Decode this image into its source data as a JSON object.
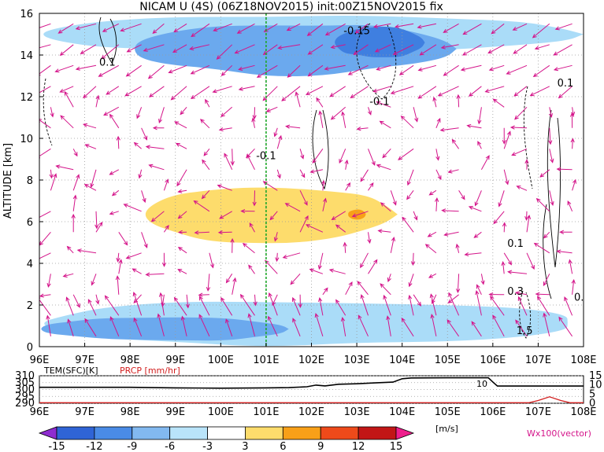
{
  "title": "NICAM U (4S) (06Z18NOV2015) init:00Z15NOV2015 fix",
  "chart_data": [
    {
      "type": "heatmap",
      "title": "NICAM U (4S) (06Z18NOV2015) init:00Z15NOV2015 fix",
      "ylabel": "ALTITUDE [km]",
      "xlim": [
        96,
        108
      ],
      "ylim": [
        0,
        16
      ],
      "x_ticks": [
        "96E",
        "97E",
        "98E",
        "99E",
        "100E",
        "101E",
        "102E",
        "103E",
        "104E",
        "105E",
        "106E",
        "107E",
        "108E"
      ],
      "y_ticks": [
        "0",
        "2",
        "4",
        "6",
        "8",
        "10",
        "12",
        "14",
        "16"
      ],
      "marker_longitude": 101,
      "grid": true,
      "contour_labels": [
        {
          "text": "-0.15",
          "x": 103.0,
          "y": 15.0
        },
        {
          "text": "0.1",
          "x": 97.5,
          "y": 13.5
        },
        {
          "text": "-0.1",
          "x": 103.5,
          "y": 11.6
        },
        {
          "text": "-0.1",
          "x": 101.0,
          "y": 9.0
        },
        {
          "text": "0.1",
          "x": 107.6,
          "y": 12.5
        },
        {
          "text": "0.1",
          "x": 106.5,
          "y": 4.8
        },
        {
          "text": "0.3",
          "x": 106.5,
          "y": 2.5
        },
        {
          "text": "0.",
          "x": 107.9,
          "y": 2.2
        },
        {
          "text": "1.5",
          "x": 106.7,
          "y": 0.6
        }
      ],
      "shaded_regions": [
        {
          "level": -6,
          "color": "#aadcf8",
          "x": [
            96.0,
            108.0
          ],
          "y": [
            14.0,
            16.0
          ]
        },
        {
          "level": -9,
          "color": "#6ba9ee",
          "x": [
            98.0,
            105.2
          ],
          "y": [
            13.0,
            15.6
          ]
        },
        {
          "level": -12,
          "color": "#3f7fe0",
          "x": [
            102.5,
            104.5
          ],
          "y": [
            13.8,
            15.4
          ]
        },
        {
          "level": 3,
          "color": "#fddc6c",
          "x": [
            98.3,
            103.9
          ],
          "y": [
            4.9,
            7.8
          ]
        },
        {
          "level": 6,
          "color": "#f8a018",
          "x": [
            102.8,
            103.2
          ],
          "y": [
            6.1,
            6.6
          ]
        },
        {
          "level": -6,
          "color": "#aadcf8",
          "x": [
            96.0,
            108.0
          ],
          "y": [
            0.0,
            2.3
          ]
        },
        {
          "level": -9,
          "color": "#6ba9ee",
          "x": [
            96.0,
            101.5
          ],
          "y": [
            0.2,
            1.5
          ]
        }
      ]
    },
    {
      "type": "line",
      "legend": [
        "TEM(SFC)[K]",
        "PRCP [mm/hr]"
      ],
      "x_ticks": [
        "96E",
        "97E",
        "98E",
        "99E",
        "100E",
        "101E",
        "102E",
        "103E",
        "104E",
        "105E",
        "106E",
        "107E",
        "108E"
      ],
      "y_ticks_left": [
        "290",
        "295",
        "300",
        "305",
        "310"
      ],
      "y_ticks_right": [
        "0",
        "5",
        "10",
        "15"
      ],
      "ylim_left": [
        290,
        310
      ],
      "ylim_right": [
        0,
        15
      ],
      "series": [
        {
          "name": "TEM(SFC)[K]",
          "color": "#000000",
          "x": [
            96,
            97,
            98,
            99,
            100,
            101,
            101.5,
            101.9,
            102.1,
            102.3,
            102.6,
            103,
            103.4,
            103.8,
            104,
            104.2,
            105,
            105.9,
            106,
            106.1,
            107,
            108
          ],
          "values": [
            301.6,
            301.6,
            301.6,
            301.2,
            301.0,
            301.2,
            301.4,
            302.0,
            303.2,
            302.6,
            303.8,
            304.2,
            304.8,
            305.4,
            307.8,
            308.4,
            308.5,
            308.5,
            305.5,
            302.5,
            302.5,
            302.5
          ]
        },
        {
          "name": "PRCP [mm/hr]",
          "color": "#d22020",
          "x": [
            96,
            106.8,
            107.0,
            107.25,
            107.5,
            107.7,
            108
          ],
          "values": [
            0.3,
            0.3,
            1.5,
            3.5,
            1.5,
            0.3,
            0.3
          ]
        }
      ],
      "annotation": "10"
    }
  ],
  "colorbar": {
    "levels": [
      "-15",
      "-12",
      "-9",
      "-6",
      "-3",
      "3",
      "6",
      "9",
      "12",
      "15"
    ],
    "colors": [
      "#8e2cd0",
      "#2f64d6",
      "#4a8be6",
      "#82b9f0",
      "#b9e4fa",
      "#ffffff",
      "#fddc6c",
      "#f8a018",
      "#ee4a1a",
      "#c21616",
      "#ee1e8c"
    ],
    "unit": "[m/s]",
    "vector_note": "Wx100(vector)"
  }
}
